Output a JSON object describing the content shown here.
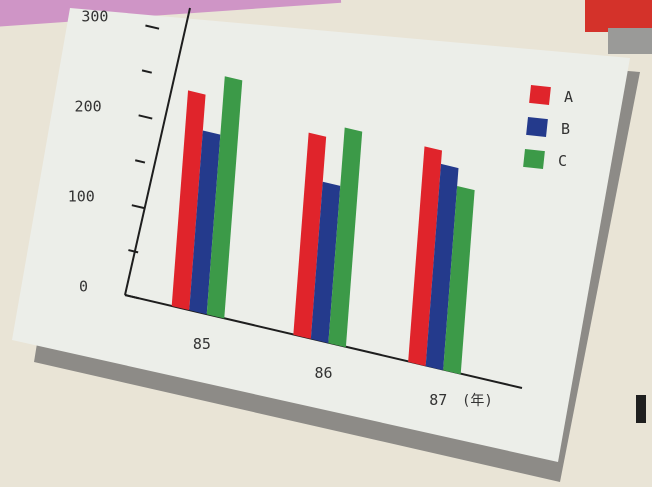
{
  "chart_data": {
    "type": "bar",
    "categories": [
      "85",
      "86",
      "87"
    ],
    "series": [
      {
        "name": "A",
        "values": [
          240,
          225,
          240
        ],
        "color": "#e0242b"
      },
      {
        "name": "B",
        "values": [
          200,
          175,
          225
        ],
        "color": "#243a8c"
      },
      {
        "name": "C",
        "values": [
          265,
          240,
          205
        ],
        "color": "#3c9a48"
      }
    ],
    "xlabel": "(年)",
    "ylabel": "",
    "ylim": [
      0,
      300
    ],
    "yticks": [
      "0",
      "100",
      "200",
      "300"
    ],
    "legend_position": "right",
    "grid": false
  }
}
